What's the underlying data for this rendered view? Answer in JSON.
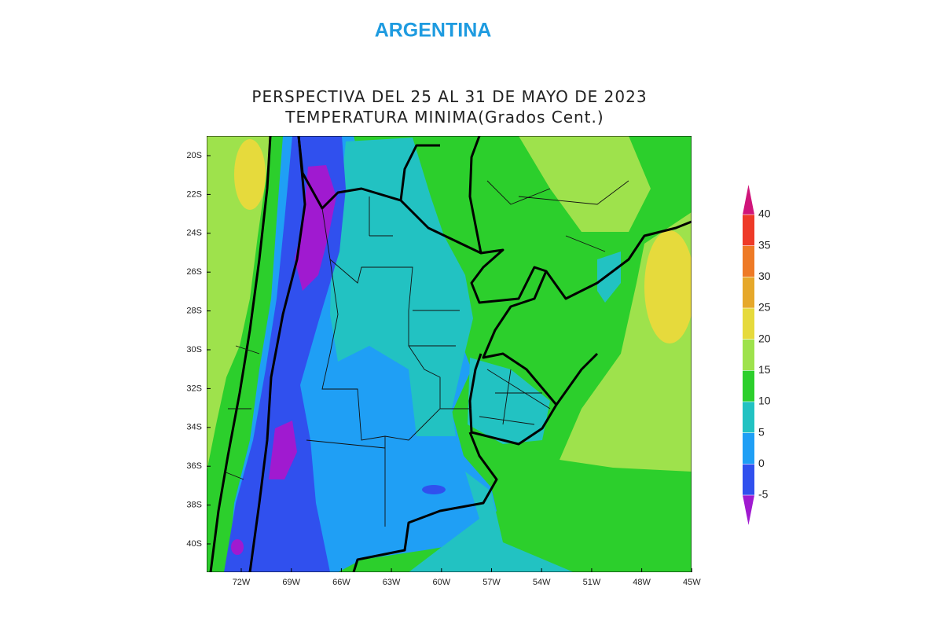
{
  "header": {
    "title": "ARGENTINA"
  },
  "map": {
    "title_lines": [
      "PERSPECTIVA DEL 25 AL 31 DE MAYO DE 2023",
      "TEMPERATURA MINIMA(Grados Cent.)"
    ],
    "lat_labels": [
      "20S",
      "22S",
      "24S",
      "26S",
      "28S",
      "30S",
      "32S",
      "34S",
      "36S",
      "38S",
      "40S"
    ],
    "lon_labels": [
      "72W",
      "69W",
      "66W",
      "63W",
      "60W",
      "57W",
      "54W",
      "51W",
      "48W",
      "45W"
    ],
    "colorbar": {
      "ticks": [
        -5,
        0,
        5,
        10,
        15,
        20,
        25,
        30,
        35,
        40
      ],
      "colors": [
        "#a01ad0",
        "#3050ee",
        "#1f9ff5",
        "#22c2c2",
        "#2ccf2c",
        "#9ee24c",
        "#e6da3c",
        "#e6a82a",
        "#ee7a26",
        "#ee3a28",
        "#d0157a"
      ]
    }
  }
}
